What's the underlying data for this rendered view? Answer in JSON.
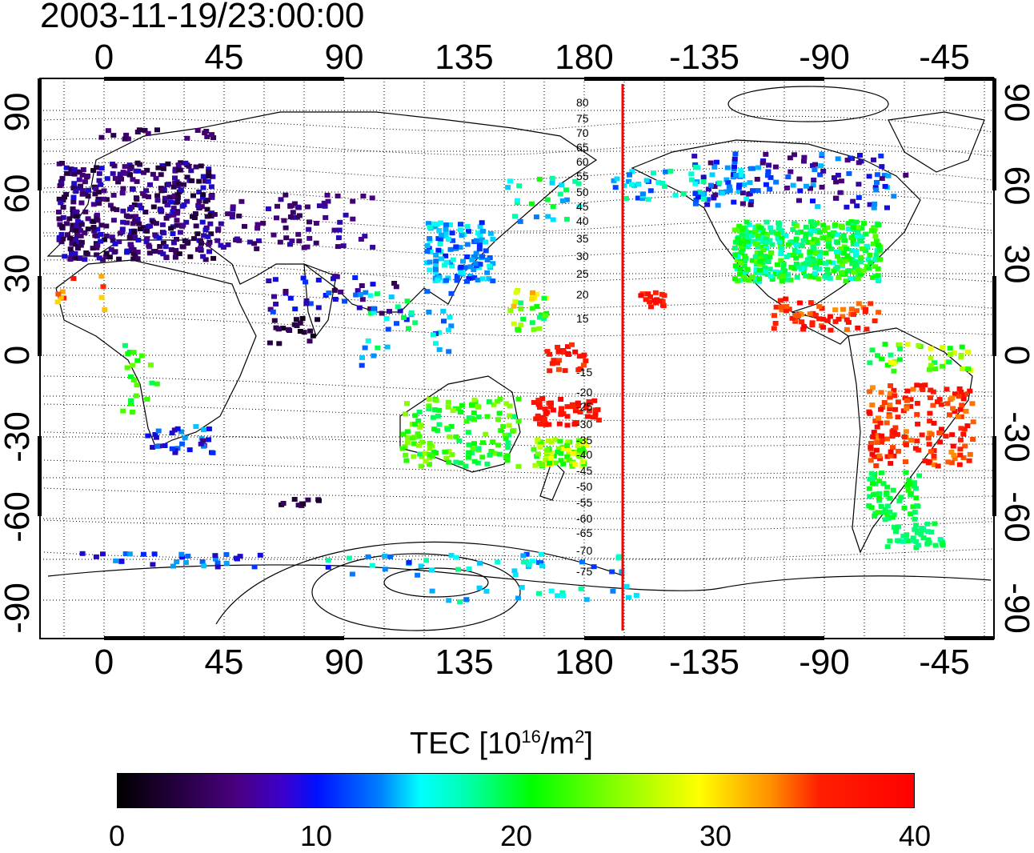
{
  "timestamp": "2003-11-19/23:00:00",
  "map": {
    "x_tick_labels": [
      "0",
      "45",
      "90",
      "135",
      "180",
      "-135",
      "-90",
      "-45"
    ],
    "y_tick_labels": [
      "90",
      "60",
      "30",
      "0",
      "-30",
      "-60",
      "-90"
    ],
    "latitude_contour_labels": [
      "80",
      "75",
      "70",
      "65",
      "60",
      "55",
      "50",
      "45",
      "40",
      "35",
      "30",
      "25",
      "20",
      "15",
      "-15",
      "-20",
      "-25",
      "-30",
      "-35",
      "-40",
      "-45",
      "-50",
      "-55",
      "-60",
      "-65",
      "-70",
      "-75"
    ],
    "marker_line_longitude": -165,
    "marker_line_color": "#ff0000"
  },
  "colorbar": {
    "title_main": "TEC  [10",
    "title_sup1": "16",
    "title_mid": "/m",
    "title_sup2": "2",
    "title_end": "]",
    "tick_labels": [
      "0",
      "10",
      "20",
      "30",
      "40"
    ],
    "min": 0,
    "max": 40,
    "colors": [
      "#000000",
      "#4a0080",
      "#0010ff",
      "#00ffff",
      "#00ff00",
      "#ffff00",
      "#ff0000"
    ]
  }
}
